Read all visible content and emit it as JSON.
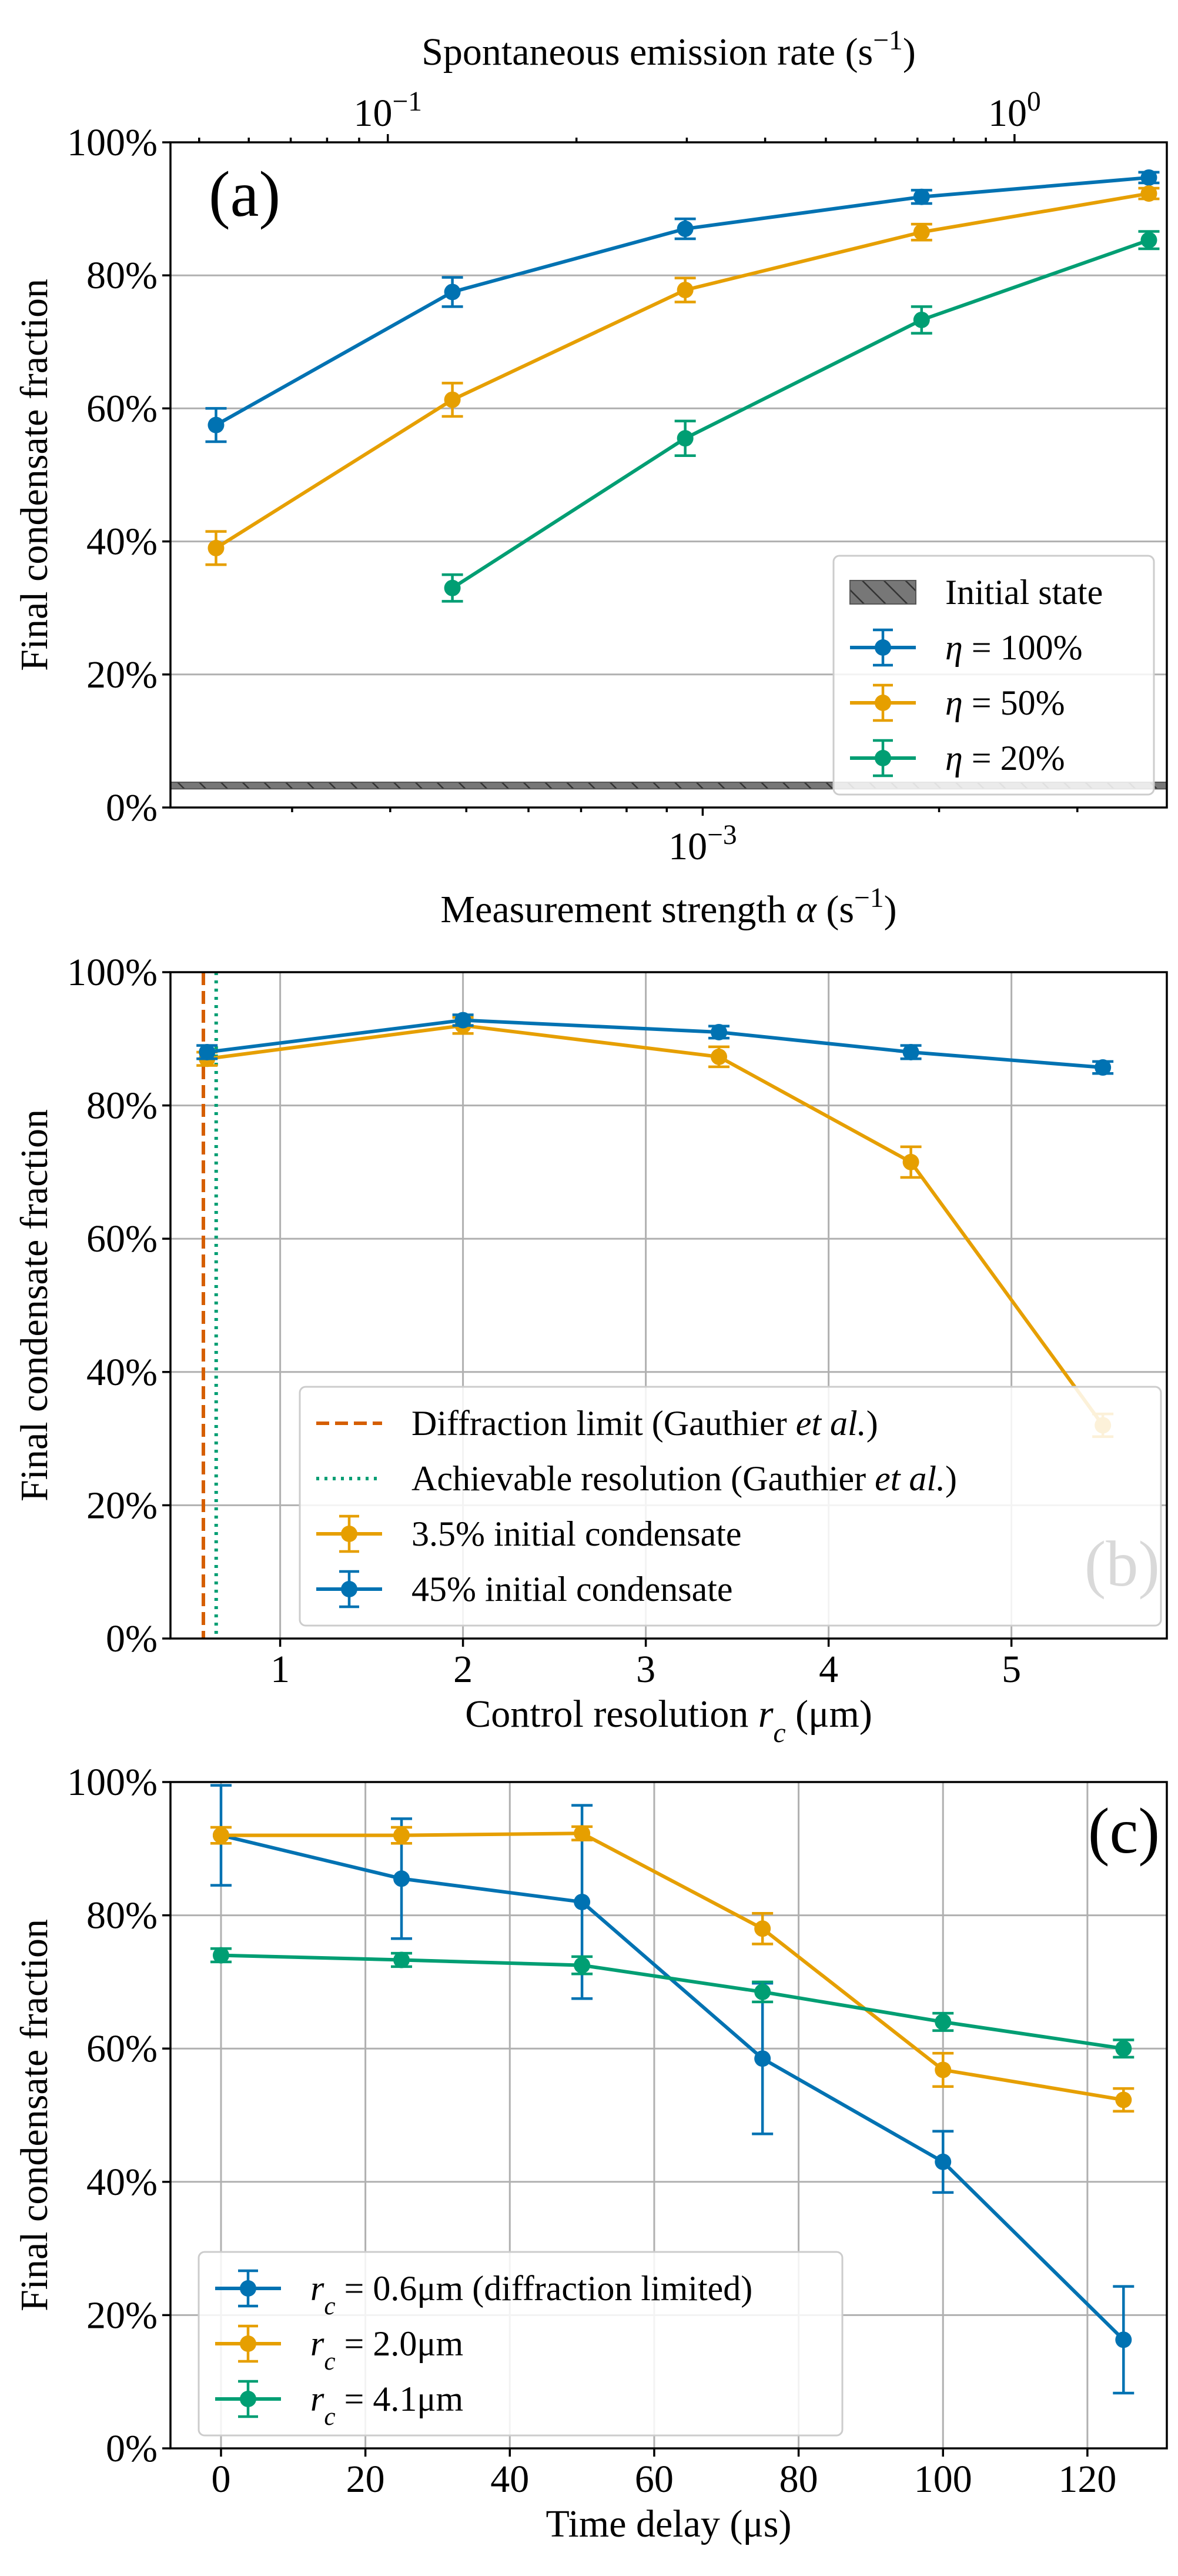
{
  "chart_data": [
    {
      "type": "line",
      "panel": "(a)",
      "xscale": "log",
      "xlabel": "Measurement strength α (s⁻¹)",
      "x_tick_labels": [
        {
          "value": 0.001,
          "base": "10",
          "exp": "-3"
        }
      ],
      "secondary_xlabel": "Spontaneous emission rate (s⁻¹)",
      "secondary_x_tick_labels": [
        {
          "value": 0.1,
          "base": "10",
          "exp": "-1"
        },
        {
          "value": 1,
          "base": "10",
          "exp": "0"
        }
      ],
      "xlim": [
        0.00021,
        0.0039
      ],
      "secondary_xlim": [
        0.045,
        1.75
      ],
      "ylabel": "Final condensate fraction",
      "ylim": [
        0,
        100
      ],
      "y_tick_labels": [
        "0%",
        "20%",
        "40%",
        "60%",
        "80%",
        "100%"
      ],
      "grid": "horizontal",
      "band": {
        "label": "Initial state",
        "y_range": [
          2.8,
          3.8
        ],
        "color": "#777777"
      },
      "legend": "lower-right",
      "series": [
        {
          "name": "η = 100%",
          "color": "#0072b2",
          "x": [
            0.00024,
            0.00048,
            0.00095,
            0.0019,
            0.0037
          ],
          "y": [
            57.5,
            77.5,
            87.0,
            91.8,
            94.7
          ],
          "err": [
            2.5,
            2.2,
            1.5,
            1.0,
            0.8
          ]
        },
        {
          "name": "η = 50%",
          "color": "#e69f00",
          "x": [
            0.00024,
            0.00048,
            0.00095,
            0.0019,
            0.0037
          ],
          "y": [
            39.0,
            61.3,
            77.8,
            86.5,
            92.3
          ],
          "err": [
            2.5,
            2.5,
            1.8,
            1.2,
            0.8
          ]
        },
        {
          "name": "η = 20%",
          "color": "#009e73",
          "x": [
            0.00048,
            0.00095,
            0.0019,
            0.0037
          ],
          "y": [
            33.0,
            55.5,
            73.3,
            85.3
          ],
          "err": [
            2.0,
            2.6,
            2.0,
            1.3
          ]
        }
      ]
    },
    {
      "type": "line",
      "panel": "(b)",
      "xlabel": "Control resolution r_c (μm)",
      "x_ticks": [
        1,
        2,
        3,
        4,
        5
      ],
      "xlim": [
        0.4,
        5.85
      ],
      "ylabel": "Final condensate fraction",
      "ylim": [
        0,
        100
      ],
      "y_tick_labels": [
        "0%",
        "20%",
        "40%",
        "60%",
        "80%",
        "100%"
      ],
      "grid": "both",
      "legend": "lower-left",
      "vlines": [
        {
          "name": "Diffraction limit (Gauthier et al.)",
          "x": 0.58,
          "color": "#d55e00",
          "style": "dashed"
        },
        {
          "name": "Achievable resolution (Gauthier et al.)",
          "x": 0.65,
          "color": "#009e73",
          "style": "dotted"
        }
      ],
      "series": [
        {
          "name": "3.5% initial condensate",
          "color": "#e69f00",
          "x": [
            0.6,
            2.0,
            3.4,
            4.45,
            5.5
          ],
          "y": [
            87.0,
            92.0,
            87.3,
            71.5,
            32.0
          ],
          "err": [
            1.0,
            1.2,
            1.5,
            2.3,
            1.7
          ]
        },
        {
          "name": "45% initial condensate",
          "color": "#0072b2",
          "x": [
            0.6,
            2.0,
            3.4,
            4.45,
            5.5
          ],
          "y": [
            88.0,
            92.8,
            91.0,
            88.0,
            85.7
          ],
          "err": [
            1.0,
            0.8,
            0.9,
            1.0,
            0.9
          ]
        }
      ]
    },
    {
      "type": "line",
      "panel": "(c)",
      "xlabel": "Time delay (μs)",
      "x_ticks": [
        0,
        20,
        40,
        60,
        80,
        100,
        120
      ],
      "xlim": [
        -7,
        131
      ],
      "ylabel": "Final condensate fraction",
      "ylim": [
        0,
        100
      ],
      "y_tick_labels": [
        "0%",
        "20%",
        "40%",
        "60%",
        "80%",
        "100%"
      ],
      "grid": "both",
      "legend": "lower-left",
      "series": [
        {
          "name": "r_c = 0.6μm (diffraction limited)",
          "color": "#0072b2",
          "x": [
            0,
            25,
            50,
            75,
            100,
            125
          ],
          "y": [
            92.0,
            85.5,
            82.0,
            58.5,
            43.0,
            16.3
          ],
          "err": [
            7.5,
            9.0,
            14.5,
            11.3,
            4.6,
            8.0
          ]
        },
        {
          "name": "r_c = 2.0μm",
          "color": "#e69f00",
          "x": [
            0,
            25,
            50,
            75,
            100,
            125
          ],
          "y": [
            92.0,
            92.0,
            92.3,
            78.0,
            56.8,
            52.3
          ],
          "err": [
            1.2,
            1.2,
            1.0,
            2.3,
            2.5,
            1.7
          ]
        },
        {
          "name": "r_c = 4.1μm",
          "color": "#009e73",
          "x": [
            0,
            25,
            50,
            75,
            100,
            125
          ],
          "y": [
            74.0,
            73.3,
            72.5,
            68.5,
            64.0,
            60.0
          ],
          "err": [
            1.0,
            1.0,
            1.3,
            1.5,
            1.3,
            1.3
          ]
        }
      ]
    }
  ]
}
